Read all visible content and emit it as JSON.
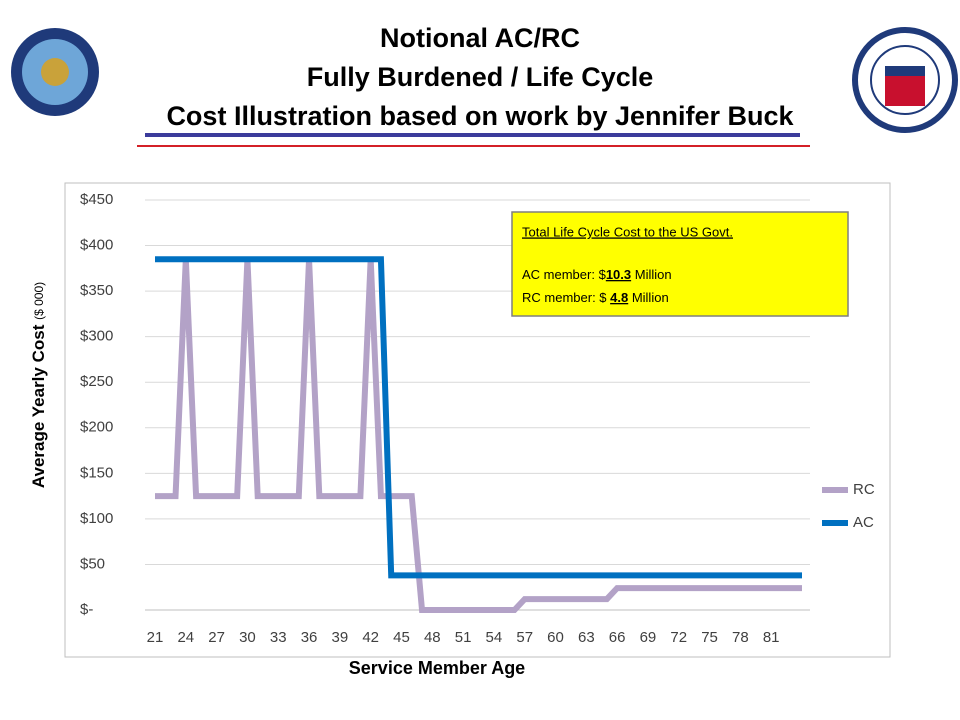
{
  "header": {
    "title_lines": [
      "Notional AC/RC",
      "Fully Burdened / Life Cycle",
      "Cost Illustration based on work by Jennifer Buck"
    ]
  },
  "chart_data": {
    "type": "line",
    "categories": [
      "21",
      null,
      null,
      "24",
      null,
      null,
      "27",
      null,
      null,
      "30",
      null,
      null,
      "33",
      null,
      null,
      "36",
      null,
      null,
      "39",
      null,
      null,
      "42",
      null,
      null,
      "45",
      null,
      null,
      "48",
      null,
      null,
      "51",
      null,
      null,
      "54",
      null,
      null,
      "57",
      null,
      null,
      "60",
      null,
      null,
      "63",
      null,
      null,
      "66",
      null,
      null,
      "69",
      null,
      null,
      "72",
      null,
      null,
      "75",
      null,
      null,
      "78",
      null,
      null,
      "81",
      null,
      null,
      null
    ],
    "series": [
      {
        "name": "RC",
        "color": "#b3a2c7",
        "values": [
          125,
          125,
          125,
          385,
          125,
          125,
          125,
          125,
          125,
          385,
          125,
          125,
          125,
          125,
          125,
          385,
          125,
          125,
          125,
          125,
          125,
          385,
          125,
          125,
          125,
          125,
          0,
          0,
          0,
          0,
          0,
          0,
          0,
          0,
          0,
          0,
          12,
          12,
          12,
          12,
          12,
          12,
          12,
          12,
          12,
          24,
          24,
          24,
          24,
          24,
          24,
          24,
          24,
          24,
          24,
          24,
          24,
          24,
          24,
          24,
          24,
          24,
          24,
          24
        ]
      },
      {
        "name": "AC",
        "color": "#0070c0",
        "values": [
          385,
          385,
          385,
          385,
          385,
          385,
          385,
          385,
          385,
          385,
          385,
          385,
          385,
          385,
          385,
          385,
          385,
          385,
          385,
          385,
          385,
          385,
          385,
          38,
          38,
          38,
          38,
          38,
          38,
          38,
          38,
          38,
          38,
          38,
          38,
          38,
          38,
          38,
          38,
          38,
          38,
          38,
          38,
          38,
          38,
          38,
          38,
          38,
          38,
          38,
          38,
          38,
          38,
          38,
          38,
          38,
          38,
          38,
          38,
          38,
          38,
          38,
          38,
          38
        ]
      }
    ],
    "ylim": [
      0,
      450
    ],
    "yticks": [
      {
        "value": 0,
        "label": "$-"
      },
      {
        "value": 50,
        "label": "$50"
      },
      {
        "value": 100,
        "label": "$100"
      },
      {
        "value": 150,
        "label": "$150"
      },
      {
        "value": 200,
        "label": "$200"
      },
      {
        "value": 250,
        "label": "$250"
      },
      {
        "value": 300,
        "label": "$300"
      },
      {
        "value": 350,
        "label": "$350"
      },
      {
        "value": 400,
        "label": "$400"
      },
      {
        "value": 450,
        "label": "$450"
      }
    ],
    "grid": true,
    "y_label": "Average Yearly Cost",
    "y_label_unit": "($ 000)",
    "x_label": "Service Member Age",
    "legend": "right",
    "annotation": {
      "title": "Total Life Cycle Cost to the US Govt.",
      "lines": [
        {
          "prefix": "AC member: $",
          "value": "10.3",
          "suffix": " Million"
        },
        {
          "prefix": "RC member: $  ",
          "value": "4.8",
          "suffix": " Million"
        }
      ]
    }
  }
}
